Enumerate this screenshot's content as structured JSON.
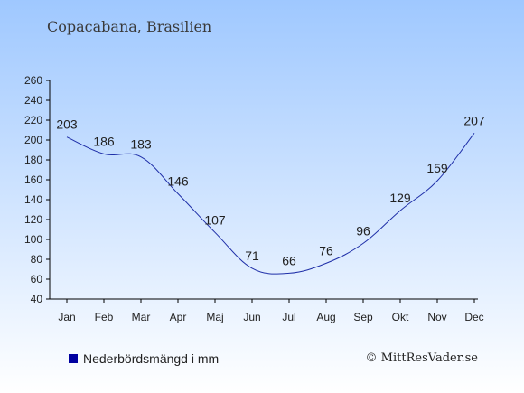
{
  "title": "Copacabana, Brasilien",
  "legend": {
    "label": "Nederbördsmängd i mm"
  },
  "credit": "© MittResVader.se",
  "colors": {
    "line": "#1f2fa8",
    "swatch": "#0000a0",
    "bg_top": "#9fc8ff",
    "bg_bottom": "#ffffff"
  },
  "chart_data": {
    "type": "line",
    "title": "Copacabana, Brasilien",
    "xlabel": "",
    "ylabel": "",
    "categories": [
      "Jan",
      "Feb",
      "Mar",
      "Apr",
      "Maj",
      "Jun",
      "Jul",
      "Aug",
      "Sep",
      "Okt",
      "Nov",
      "Dec"
    ],
    "series": [
      {
        "name": "Nederbördsmängd i mm",
        "values": [
          203,
          186,
          183,
          146,
          107,
          71,
          66,
          76,
          96,
          129,
          159,
          207
        ]
      }
    ],
    "ylim": [
      40,
      260
    ],
    "yticks": [
      40,
      60,
      80,
      100,
      120,
      140,
      160,
      180,
      200,
      220,
      240,
      260
    ],
    "grid": false,
    "legend_position": "bottom-left"
  }
}
